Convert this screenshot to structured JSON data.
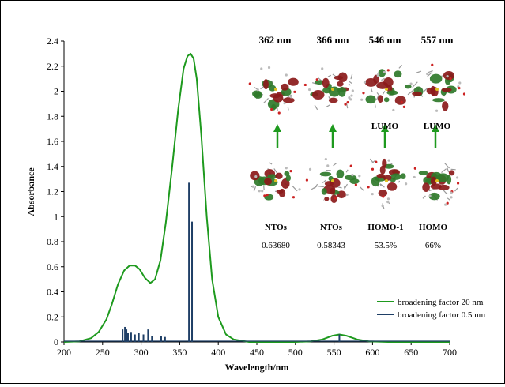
{
  "chart_data": {
    "type": "line",
    "title": "",
    "xlabel": "Wavelength/nm",
    "ylabel": "Absorbance",
    "xlim": [
      200,
      700
    ],
    "ylim": [
      0,
      2.4
    ],
    "x_ticks": [
      "200",
      "250",
      "300",
      "350",
      "400",
      "450",
      "500",
      "550",
      "600",
      "650",
      "700"
    ],
    "y_ticks": [
      "0",
      "0.2",
      "0.4",
      "0.6",
      "0.8",
      "1",
      "1.2",
      "1.4",
      "1.6",
      "1.8",
      "2",
      "2.2",
      "2.4"
    ],
    "grid": false,
    "legend_position": "bottom-right",
    "series": [
      {
        "name": "broadening factor 20 nm",
        "color": "#1e9a1e",
        "points": [
          [
            200,
            0
          ],
          [
            220,
            0.005
          ],
          [
            235,
            0.03
          ],
          [
            245,
            0.08
          ],
          [
            255,
            0.18
          ],
          [
            262,
            0.3
          ],
          [
            270,
            0.46
          ],
          [
            278,
            0.57
          ],
          [
            285,
            0.61
          ],
          [
            292,
            0.61
          ],
          [
            298,
            0.58
          ],
          [
            305,
            0.51
          ],
          [
            312,
            0.47
          ],
          [
            318,
            0.5
          ],
          [
            325,
            0.65
          ],
          [
            332,
            0.95
          ],
          [
            340,
            1.38
          ],
          [
            348,
            1.85
          ],
          [
            355,
            2.18
          ],
          [
            360,
            2.28
          ],
          [
            364,
            2.3
          ],
          [
            368,
            2.26
          ],
          [
            372,
            2.1
          ],
          [
            378,
            1.65
          ],
          [
            385,
            1.0
          ],
          [
            392,
            0.5
          ],
          [
            400,
            0.2
          ],
          [
            410,
            0.06
          ],
          [
            420,
            0.02
          ],
          [
            440,
            0
          ],
          [
            500,
            0
          ],
          [
            520,
            0.005
          ],
          [
            535,
            0.02
          ],
          [
            548,
            0.05
          ],
          [
            557,
            0.06
          ],
          [
            566,
            0.05
          ],
          [
            580,
            0.02
          ],
          [
            595,
            0.005
          ],
          [
            620,
            0
          ],
          [
            700,
            0
          ]
        ]
      },
      {
        "name": "broadening factor 0.5 nm",
        "color": "#1f3f66",
        "sticks": [
          [
            276,
            0.1
          ],
          [
            279,
            0.12
          ],
          [
            281,
            0.1
          ],
          [
            283,
            0.07
          ],
          [
            287,
            0.08
          ],
          [
            292,
            0.06
          ],
          [
            297,
            0.07
          ],
          [
            303,
            0.06
          ],
          [
            309,
            0.1
          ],
          [
            314,
            0.05
          ],
          [
            326,
            0.05
          ],
          [
            331,
            0.04
          ],
          [
            362,
            1.27
          ],
          [
            366,
            0.96
          ],
          [
            557,
            0.06
          ]
        ]
      }
    ],
    "annotations": {
      "transitions": [
        {
          "wavelength": "362 nm",
          "lower": "NTOs",
          "upper": "",
          "weight": "0.63680"
        },
        {
          "wavelength": "366 nm",
          "lower": "NTOs",
          "upper": "",
          "weight": "0.58343"
        },
        {
          "wavelength": "546 nm",
          "lower": "HOMO-1",
          "upper": "LUMO",
          "weight": "53.5%"
        },
        {
          "wavelength": "557 nm",
          "lower": "HOMO",
          "upper": "LUMO",
          "weight": "66%"
        }
      ]
    }
  }
}
